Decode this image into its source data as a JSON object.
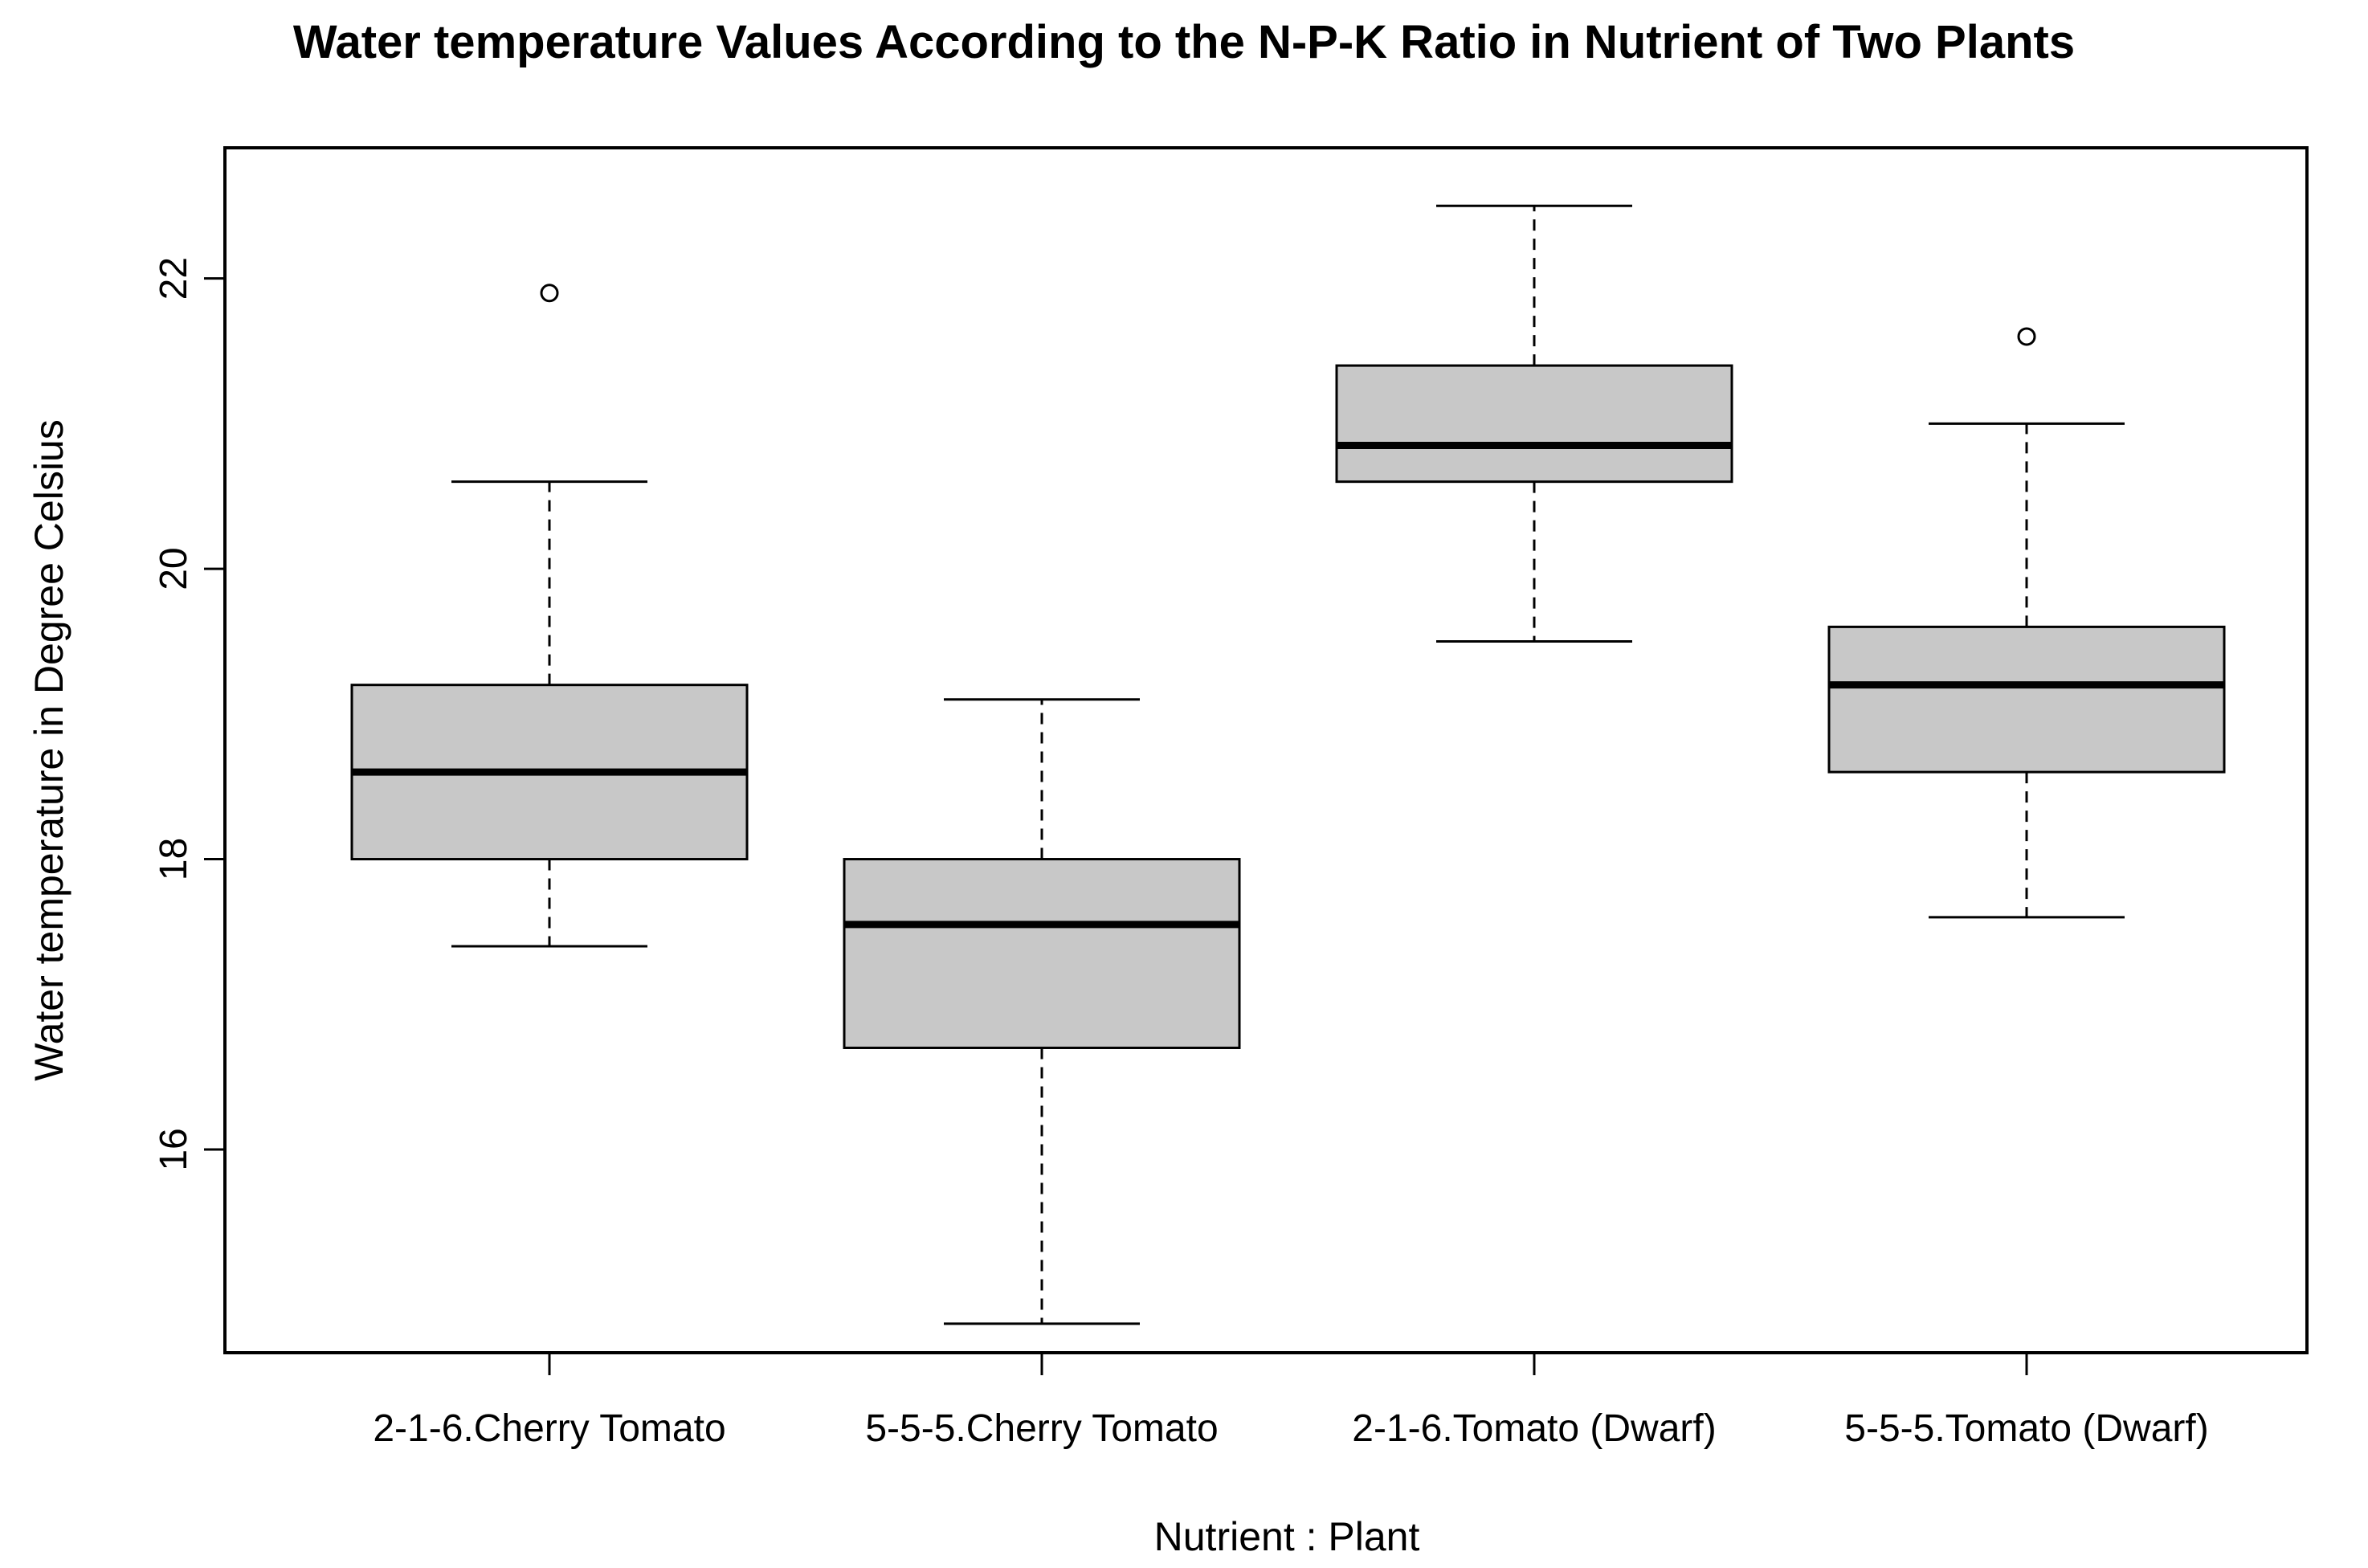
{
  "chart_data": {
    "type": "boxplot",
    "title": "Water temperature Values According to the N-P-K Ratio in Nutrient of Two Plants",
    "xlabel": "Nutrient : Plant",
    "ylabel": "Water temperature in Degree Celsius",
    "ylim": [
      14.6,
      22.9
    ],
    "yticks": [
      16,
      18,
      20,
      22
    ],
    "ytick_labels": [
      "16",
      "18",
      "20",
      "22"
    ],
    "categories": [
      "2-1-6.Cherry Tomato",
      "5-5-5.Cherry Tomato",
      "2-1-6.Tomato (Dwarf)",
      "5-5-5.Tomato (Dwarf)"
    ],
    "boxes": [
      {
        "whisker_low": 17.4,
        "q1": 18.0,
        "median": 18.6,
        "q3": 19.2,
        "whisker_high": 20.6,
        "outliers": [
          21.9
        ]
      },
      {
        "whisker_low": 14.8,
        "q1": 16.7,
        "median": 17.55,
        "q3": 18.0,
        "whisker_high": 19.1,
        "outliers": []
      },
      {
        "whisker_low": 19.5,
        "q1": 20.6,
        "median": 20.85,
        "q3": 21.4,
        "whisker_high": 22.5,
        "outliers": []
      },
      {
        "whisker_low": 17.6,
        "q1": 18.6,
        "median": 19.2,
        "q3": 19.6,
        "whisker_high": 21.0,
        "outliers": [
          21.6
        ]
      }
    ],
    "box_color": "#c8c8c8",
    "line_color": "#000000",
    "grid": false
  }
}
